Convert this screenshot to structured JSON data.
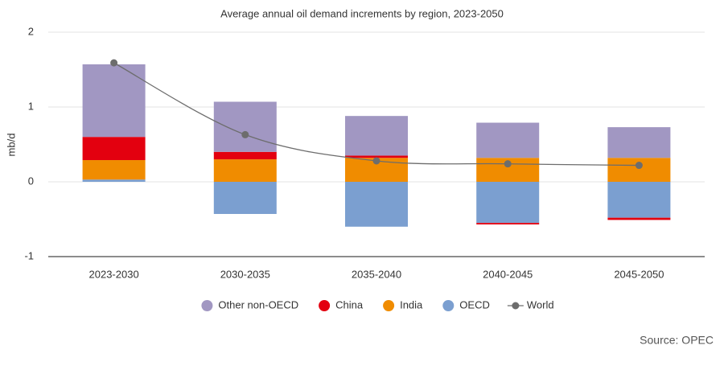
{
  "chart_data": {
    "type": "stacked-bar-line",
    "title": "Average annual oil demand increments by region, 2023-2050",
    "y_label": "mb/d",
    "source": "Source: OPEC",
    "categories": [
      "2023-2030",
      "2030-2035",
      "2035-2040",
      "2040-2045",
      "2045-2050"
    ],
    "series": [
      {
        "name": "Other non-OECD",
        "color": "#a197c2",
        "values": [
          0.97,
          0.67,
          0.53,
          0.47,
          0.41
        ]
      },
      {
        "name": "China",
        "color": "#e3000f",
        "values": [
          0.31,
          0.1,
          0.03,
          -0.02,
          -0.03
        ]
      },
      {
        "name": "India",
        "color": "#f08c00",
        "values": [
          0.26,
          0.3,
          0.32,
          0.32,
          0.32
        ]
      },
      {
        "name": "OECD",
        "color": "#7b9fd0",
        "values": [
          0.03,
          -0.43,
          -0.6,
          -0.55,
          -0.48
        ]
      },
      {
        "name": "World",
        "type": "line",
        "color": "#6d6d6d",
        "values": [
          1.59,
          0.63,
          0.28,
          0.24,
          0.22
        ]
      }
    ],
    "ylim": [
      -1,
      2
    ],
    "yticks": [
      -1,
      0,
      1,
      2
    ],
    "grid": true,
    "legend": "bottom"
  }
}
